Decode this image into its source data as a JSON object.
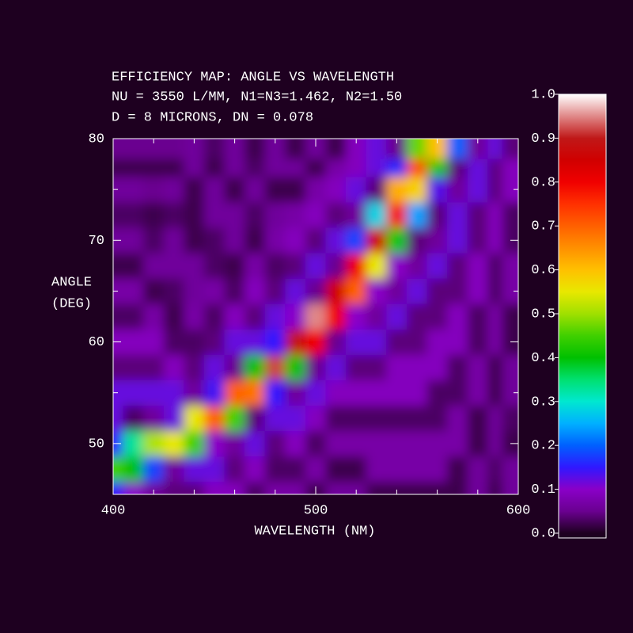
{
  "chart_data": {
    "type": "heatmap",
    "title": "EFFICIENCY MAP: ANGLE VS WAVELENGTH",
    "subtitle": [
      "NU = 3550 L/MM, N1=N3=1.462, N2=1.50",
      "D = 8 MICRONS, DN = 0.078"
    ],
    "xlabel": "WAVELENGTH (NM)",
    "ylabel": [
      "ANGLE",
      "(DEG)"
    ],
    "x": [
      400,
      410,
      420,
      430,
      440,
      450,
      460,
      470,
      480,
      490,
      500,
      510,
      520,
      530,
      540,
      550,
      560,
      570,
      580,
      590,
      600
    ],
    "y": [
      45,
      47.5,
      50,
      52.5,
      55,
      57.5,
      60,
      62.5,
      65,
      67.5,
      70,
      72.5,
      75,
      77.5,
      80
    ],
    "z": [
      [
        0.15,
        0.45,
        0.15,
        0.12,
        0.12,
        0.04,
        0.09,
        0.03,
        0.07,
        0.02,
        0.06,
        0.03,
        0.06,
        0.02,
        0.05
      ],
      [
        0.1,
        0.4,
        0.33,
        0.03,
        0.12,
        0.04,
        0.09,
        0.03,
        0.07,
        0.02,
        0.06,
        0.03,
        0.06,
        0.02,
        0.05
      ],
      [
        0.06,
        0.18,
        0.51,
        0.06,
        0.12,
        0.04,
        0.09,
        0.07,
        0.02,
        0.06,
        0.03,
        0.02,
        0.05,
        0.02,
        0.05
      ],
      [
        0.04,
        0.06,
        0.55,
        0.12,
        0.12,
        0.09,
        0.03,
        0.02,
        0.03,
        0.06,
        0.06,
        0.03,
        0.06,
        0.02,
        0.05
      ],
      [
        0.04,
        0.12,
        0.45,
        0.55,
        0.06,
        0.04,
        0.03,
        0.07,
        0.06,
        0.06,
        0.02,
        0.02,
        0.02,
        0.06,
        0.06
      ],
      [
        0.09,
        0.12,
        0.1,
        0.7,
        0.14,
        0.12,
        0.04,
        0.03,
        0.07,
        0.03,
        0.03,
        0.06,
        0.06,
        0.02,
        0.03
      ],
      [
        0.09,
        0.04,
        0.06,
        0.45,
        0.7,
        0.05,
        0.12,
        0.09,
        0.03,
        0.02,
        0.06,
        0.06,
        0.02,
        0.06,
        0.06
      ],
      [
        0.03,
        0.09,
        0.12,
        0.04,
        0.68,
        0.4,
        0.12,
        0.04,
        0.09,
        0.07,
        0.02,
        0.03,
        0.06,
        0.03,
        0.02
      ],
      [
        0.07,
        0.03,
        0.04,
        0.12,
        0.15,
        0.92,
        0.15,
        0.12,
        0.04,
        0.03,
        0.07,
        0.06,
        0.02,
        0.06,
        0.06
      ],
      [
        0.07,
        0.03,
        0.09,
        0.12,
        0.06,
        0.4,
        0.89,
        0.1,
        0.12,
        0.04,
        0.09,
        0.07,
        0.02,
        0.06,
        0.02
      ],
      [
        0.02,
        0.07,
        0.03,
        0.09,
        0.12,
        0.05,
        0.8,
        0.95,
        0.05,
        0.12,
        0.04,
        0.09,
        0.07,
        0.02,
        0.06
      ],
      [
        0.06,
        0.02,
        0.07,
        0.03,
        0.09,
        0.12,
        0.05,
        0.8,
        0.85,
        0.05,
        0.12,
        0.04,
        0.09,
        0.07,
        0.02
      ],
      [
        0.06,
        0.02,
        0.07,
        0.03,
        0.09,
        0.04,
        0.12,
        0.1,
        0.7,
        0.8,
        0.18,
        0.06,
        0.12,
        0.09,
        0.09
      ],
      [
        0.02,
        0.07,
        0.07,
        0.03,
        0.09,
        0.04,
        0.12,
        0.06,
        0.1,
        0.55,
        0.85,
        0.28,
        0.04,
        0.12,
        0.12
      ],
      [
        0.02,
        0.07,
        0.07,
        0.03,
        0.09,
        0.09,
        0.04,
        0.12,
        0.06,
        0.1,
        0.39,
        0.78,
        0.62,
        0.16,
        0.05
      ],
      [
        0.02,
        0.07,
        0.07,
        0.03,
        0.09,
        0.09,
        0.04,
        0.04,
        0.12,
        0.06,
        0.04,
        0.24,
        0.58,
        0.72,
        0.47
      ],
      [
        0.02,
        0.07,
        0.07,
        0.03,
        0.03,
        0.09,
        0.09,
        0.04,
        0.04,
        0.12,
        0.06,
        0.04,
        0.13,
        0.42,
        0.6
      ],
      [
        0.02,
        0.02,
        0.07,
        0.07,
        0.03,
        0.03,
        0.09,
        0.09,
        0.04,
        0.04,
        0.12,
        0.12,
        0.06,
        0.04,
        0.2
      ],
      [
        0.06,
        0.06,
        0.02,
        0.02,
        0.07,
        0.07,
        0.03,
        0.03,
        0.09,
        0.09,
        0.04,
        0.04,
        0.12,
        0.12,
        0.06
      ],
      [
        0.02,
        0.03,
        0.06,
        0.06,
        0.02,
        0.02,
        0.07,
        0.07,
        0.03,
        0.03,
        0.09,
        0.09,
        0.04,
        0.04,
        0.12
      ],
      [
        0.06,
        0.06,
        0.02,
        0.03,
        0.06,
        0.06,
        0.02,
        0.02,
        0.07,
        0.07,
        0.03,
        0.03,
        0.09,
        0.09,
        0.04
      ]
    ],
    "xlim": [
      400,
      600
    ],
    "ylim": [
      45,
      80
    ],
    "xticks": [
      400,
      500,
      600
    ],
    "yticks": [
      50,
      60,
      70,
      80
    ],
    "xminorticks": [
      420,
      440,
      460,
      480,
      520,
      540,
      560,
      580
    ],
    "yminorticks": [
      55,
      65,
      75
    ],
    "colorbar": {
      "lim": [
        0,
        1
      ],
      "ticks": [
        {
          "value": 0,
          "label": "0.0"
        },
        {
          "value": 0.1,
          "label": "0.1"
        },
        {
          "value": 0.2,
          "label": "0.2"
        },
        {
          "value": 0.3,
          "label": "0.3"
        },
        {
          "value": 0.4,
          "label": "0.4"
        },
        {
          "value": 0.5,
          "label": "0.5"
        },
        {
          "value": 0.6,
          "label": "0.6"
        },
        {
          "value": 0.7,
          "label": "0.7"
        },
        {
          "value": 0.8,
          "label": "0.8"
        },
        {
          "value": 0.9,
          "label": "0.9"
        },
        {
          "value": 1,
          "label": "1.0"
        }
      ],
      "colormap": [
        "#1e0020",
        "#6a0090",
        "#8a00c8",
        "#3018ff",
        "#0060ff",
        "#00b0ff",
        "#00e8d0",
        "#00e070",
        "#00c000",
        "#40d000",
        "#a0e000",
        "#e8e800",
        "#ffc000",
        "#ff9000",
        "#ff6000",
        "#ff3000",
        "#f00000",
        "#d00000",
        "#c01818",
        "#e08888",
        "#ffffff"
      ]
    }
  }
}
